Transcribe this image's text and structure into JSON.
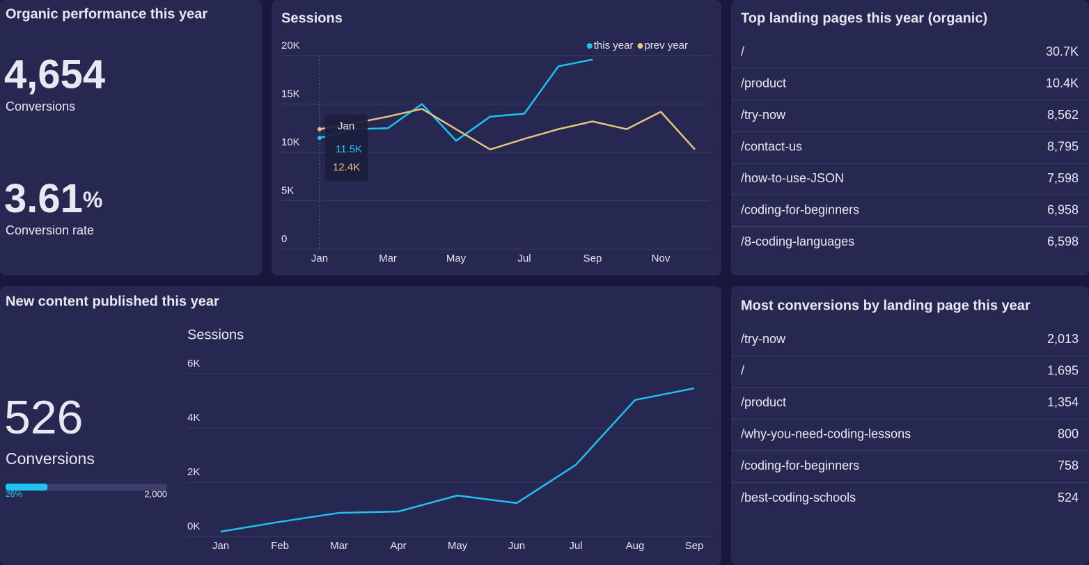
{
  "organic": {
    "title": "Organic performance this year",
    "conversions": {
      "value": "4,654",
      "label": "Conversions"
    },
    "rate": {
      "value": "3.61",
      "unit": "%",
      "label": "Conversion rate"
    }
  },
  "new_content": {
    "title": "New content published this year",
    "conversions": {
      "value": "526",
      "label": "Conversions"
    },
    "progress": {
      "percent": 26,
      "percent_label": "26%",
      "target": "2,000"
    }
  },
  "top_landing_pages": {
    "title": "Top landing pages this year (organic)",
    "rows": [
      [
        "/",
        "30.7K"
      ],
      [
        "/product",
        "10.4K"
      ],
      [
        "/try-now",
        "8,562"
      ],
      [
        "/contact-us",
        "8,795"
      ],
      [
        "/how-to-use-JSON",
        "7,598"
      ],
      [
        "/coding-for-beginners",
        "6,958"
      ],
      [
        "/8-coding-languages",
        "6,598"
      ]
    ]
  },
  "most_conversions": {
    "title": "Most conversions by landing page this year",
    "rows": [
      [
        "/try-now",
        "2,013"
      ],
      [
        "/",
        "1,695"
      ],
      [
        "/product",
        "1,354"
      ],
      [
        "/why-you-need-coding-lessons",
        "800"
      ],
      [
        "/coding-for-beginners",
        "758"
      ],
      [
        "/best-coding-schools",
        "524"
      ]
    ]
  },
  "chart_data": [
    {
      "type": "line",
      "title": "Sessions",
      "categories": [
        "Jan",
        null,
        "Mar",
        null,
        "May",
        null,
        "Jul",
        null,
        "Sep",
        null,
        "Nov",
        null
      ],
      "series": [
        {
          "name": "this year",
          "color": "#1ec3f2",
          "values": [
            11500,
            12400,
            12500,
            15000,
            11200,
            13700,
            14000,
            18900,
            19600,
            null,
            null,
            null
          ]
        },
        {
          "name": "prev year",
          "color": "#e5c47d",
          "values": [
            12400,
            13000,
            13700,
            14500,
            12400,
            10300,
            11400,
            12400,
            13200,
            12400,
            14200,
            10300
          ]
        }
      ],
      "ylim": [
        0,
        20000
      ],
      "yticks": [
        0,
        {
          "value": 5000,
          "label": "5K"
        },
        {
          "value": 10000,
          "label": "10K"
        },
        {
          "value": 15000,
          "label": "15K"
        },
        {
          "value": 20000,
          "label": "20K"
        }
      ],
      "grid": true,
      "legend": "top-right",
      "tooltip": {
        "labels": [
          "11.5K",
          "12.4K"
        ]
      }
    },
    {
      "type": "line",
      "title": "Sessions",
      "categories": [
        "Jan",
        "Feb",
        "Mar",
        "Apr",
        "May",
        "Jun",
        "Jul",
        "Aug",
        "Sep"
      ],
      "series": [
        {
          "color": "#1ec3f2",
          "values": [
            180,
            540,
            870,
            920,
            1510,
            1230,
            2640,
            5030,
            5460
          ]
        }
      ],
      "ylim": [
        0,
        6000
      ],
      "yticks": [
        {
          "value": 0,
          "label": "0K"
        },
        {
          "value": 2000,
          "label": "2K"
        },
        {
          "value": 4000,
          "label": "4K"
        },
        {
          "value": 6000,
          "label": "6K"
        }
      ],
      "grid": true
    }
  ]
}
